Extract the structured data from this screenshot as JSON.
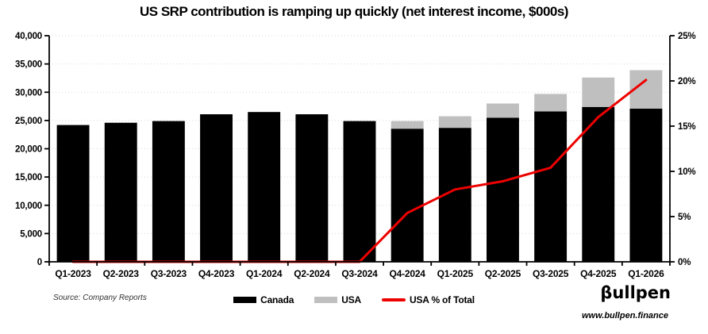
{
  "title": "US SRP contribution is ramping up quickly (net interest income, $000s)",
  "source_note": "Source: Company Reports",
  "brand": {
    "logo": "βullpen",
    "website": "www.bullpen.finance"
  },
  "legend": [
    {
      "label": "Canada",
      "type": "swatch",
      "color": "#000000"
    },
    {
      "label": "USA",
      "type": "swatch",
      "color": "#bfbfbf"
    },
    {
      "label": "USA % of Total",
      "type": "line",
      "color": "#ed0000"
    }
  ],
  "chart_data": {
    "type": "bar",
    "subtype": "stacked bars with secondary-axis line",
    "title": "US SRP contribution is ramping up quickly (net interest income, $000s)",
    "categories": [
      "Q1-2023",
      "Q2-2023",
      "Q3-2023",
      "Q4-2023",
      "Q1-2024",
      "Q2-2024",
      "Q3-2024",
      "Q4-2024",
      "Q1-2025",
      "Q2-2025",
      "Q3-2025",
      "Q4-2025",
      "Q1-2026"
    ],
    "series": [
      {
        "name": "Canada",
        "type": "bar",
        "stack": true,
        "axis": "left",
        "color": "#000000",
        "values": [
          24200,
          24600,
          24900,
          26100,
          26500,
          26100,
          24900,
          23550,
          23700,
          25500,
          26600,
          27400,
          27100
        ]
      },
      {
        "name": "USA",
        "type": "bar",
        "stack": true,
        "axis": "left",
        "color": "#bfbfbf",
        "values": [
          0,
          0,
          0,
          0,
          0,
          0,
          0,
          1350,
          2050,
          2500,
          3100,
          5200,
          6800
        ]
      },
      {
        "name": "USA % of Total",
        "type": "line",
        "axis": "right",
        "color": "#ed0000",
        "values": [
          0,
          0,
          0,
          0,
          0,
          0,
          0,
          5.4,
          8.0,
          8.9,
          10.4,
          16.0,
          20.1
        ]
      }
    ],
    "left_axis": {
      "min": 0,
      "max": 40000,
      "step": 5000,
      "tick_labels": [
        "0",
        "5,000",
        "10,000",
        "15,000",
        "20,000",
        "25,000",
        "30,000",
        "35,000",
        "40,000"
      ]
    },
    "right_axis": {
      "min": 0,
      "max": 25,
      "step": 5,
      "tick_labels": [
        "0%",
        "5%",
        "10%",
        "15%",
        "20%",
        "25%"
      ]
    },
    "grid": "horizontal dotted",
    "gridline_color": "#d8d8d8",
    "legend_position": "bottom"
  }
}
